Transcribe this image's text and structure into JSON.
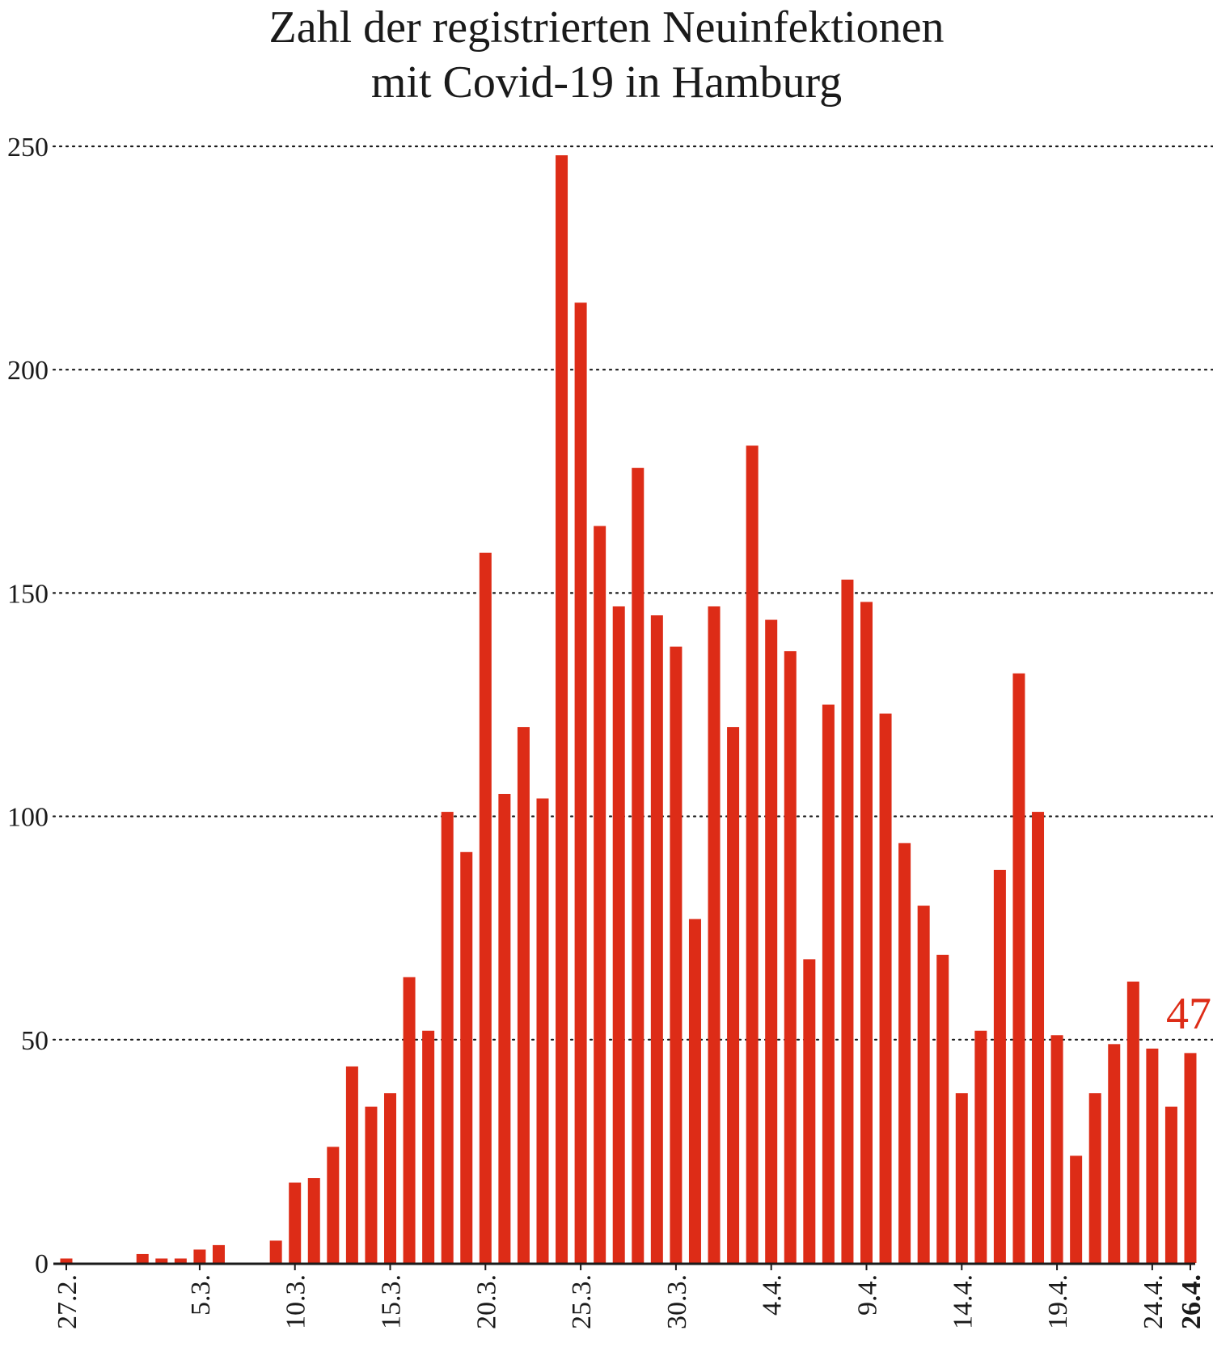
{
  "chart_data": {
    "type": "bar",
    "title": "Zahl der registrierten Neuinfektionen mit Covid-19 in Hamburg",
    "title_lines": [
      "Zahl der registrierten Neuinfektionen",
      "mit Covid-19 in Hamburg"
    ],
    "xlabel": "",
    "ylabel": "",
    "ylim": [
      0,
      250
    ],
    "yticks": [
      0,
      50,
      100,
      150,
      200,
      250
    ],
    "grid": "horizontal-dotted",
    "categories": [
      "27.2.",
      "28.2.",
      "29.2.",
      "1.3.",
      "2.3.",
      "3.3.",
      "4.3.",
      "5.3.",
      "6.3.",
      "7.3.",
      "8.3.",
      "9.3.",
      "10.3.",
      "11.3.",
      "12.3.",
      "13.3.",
      "14.3.",
      "15.3.",
      "16.3.",
      "17.3.",
      "18.3.",
      "19.3.",
      "20.3.",
      "21.3.",
      "22.3.",
      "23.3.",
      "24.3.",
      "25.3.",
      "26.3.",
      "27.3.",
      "28.3.",
      "29.3.",
      "30.3.",
      "31.3.",
      "1.4.",
      "2.4.",
      "3.4.",
      "4.4.",
      "5.4.",
      "6.4.",
      "7.4.",
      "8.4.",
      "9.4.",
      "10.4.",
      "11.4.",
      "12.4.",
      "13.4.",
      "14.4.",
      "15.4.",
      "16.4.",
      "17.4.",
      "18.4.",
      "19.4.",
      "20.4.",
      "21.4.",
      "22.4.",
      "23.4.",
      "24.4.",
      "25.4.",
      "26.4."
    ],
    "x_tick_labels": [
      "27.2.",
      "5.3.",
      "10.3.",
      "15.3.",
      "20.3.",
      "25.3.",
      "30.3.",
      "4.4.",
      "9.4.",
      "14.4.",
      "19.4.",
      "24.4.",
      "26.4."
    ],
    "highlight_label": "26.4.",
    "values": [
      1,
      0,
      0,
      0,
      2,
      1,
      1,
      3,
      4,
      0,
      0,
      5,
      18,
      19,
      26,
      44,
      35,
      38,
      64,
      52,
      101,
      92,
      159,
      105,
      120,
      104,
      248,
      215,
      165,
      147,
      178,
      145,
      138,
      77,
      147,
      120,
      183,
      144,
      137,
      68,
      125,
      153,
      148,
      123,
      94,
      80,
      69,
      38,
      52,
      88,
      132,
      101,
      51,
      24,
      38,
      49,
      63,
      48,
      35,
      47
    ],
    "annotation": {
      "category": "26.4.",
      "text": "47"
    },
    "colors": {
      "bar": "#dd2c17",
      "annotation": "#dd2c17",
      "axis": "#1a1a1a",
      "grid": "#1a1a1a",
      "text": "#1a1a1a"
    }
  }
}
